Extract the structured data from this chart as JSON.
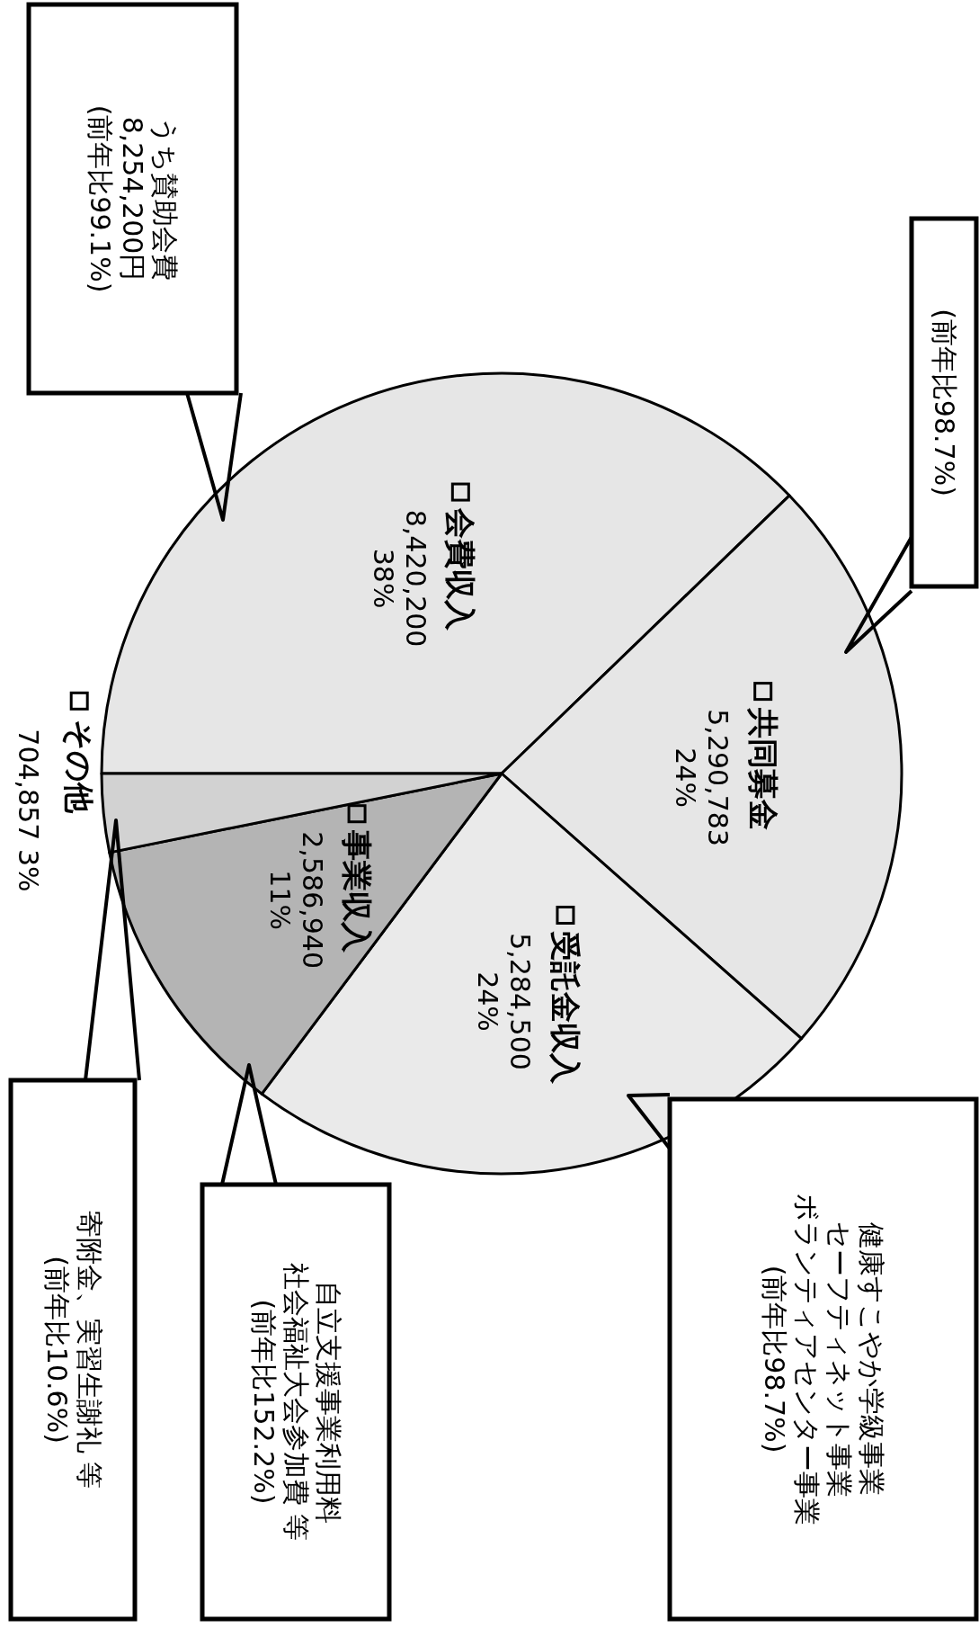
{
  "chart_data": {
    "type": "pie",
    "legend": "center",
    "categories": [
      "会費収入",
      "共同募金",
      "受託金収入",
      "事業収入",
      "その他"
    ],
    "values": [
      8420200,
      5290783,
      5284500,
      2586940,
      704857
    ],
    "value_labels": [
      "8,420,200 38%",
      "5,290,783 24%",
      "5,284,500 24%",
      "2,586,940 11%",
      "704,857 3%"
    ],
    "colors": [
      "#e6e6e6",
      "#e6e6e6",
      "#eaeaea",
      "#b4b4b4",
      "#d2d2d2"
    ],
    "annotations": [
      {
        "text": "うち賛助会費",
        "x": "会費収入"
      },
      "8,254,200円",
      "(前年比99.1%)",
      {
        "text": "(前年比98.7%)",
        "x": "共同募金"
      },
      {
        "text": "健康すこやか学級事業",
        "x": "受託金収入"
      },
      "セーフティネット事業",
      "ボランティアセンター事業",
      "(前年比98.7%)",
      {
        "text": "自立支援事業利用料",
        "x": "事業収入"
      },
      "社会福祉大会参加費 等",
      "(前年比152.2%)",
      {
        "text": "寄附金、実習生謝礼 等",
        "x": "その他"
      },
      "(前年比10.6%)"
    ]
  }
}
